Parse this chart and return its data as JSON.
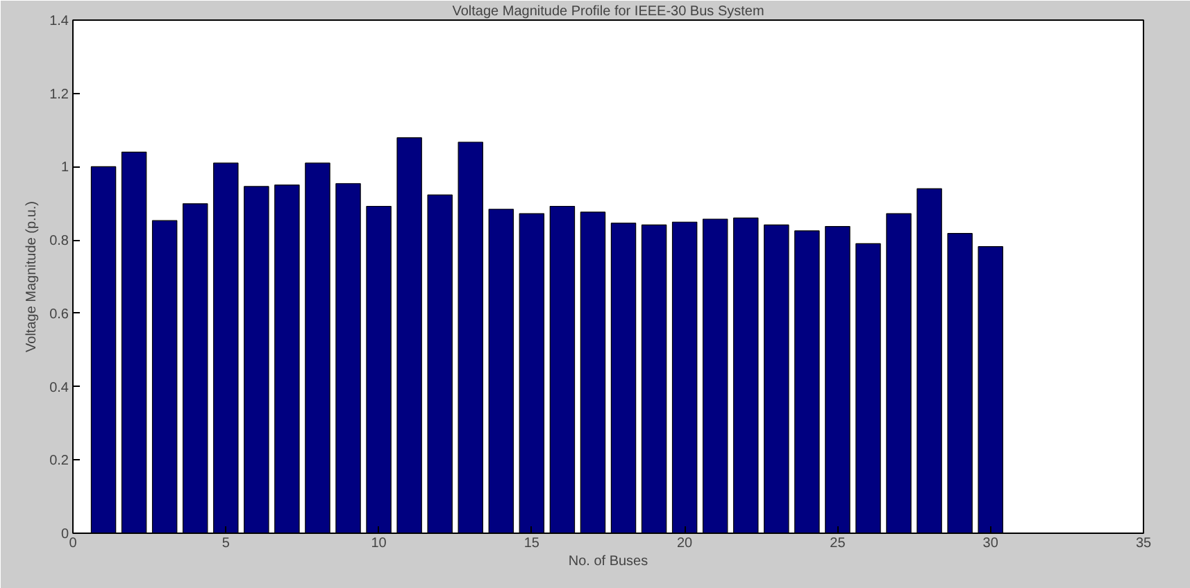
{
  "chart_data": {
    "type": "bar",
    "title": "Voltage Magnitude Profile for IEEE-30 Bus System",
    "xlabel": "No. of Buses",
    "ylabel": "Voltage Magnitude (p.u.)",
    "x": [
      1,
      2,
      3,
      4,
      5,
      6,
      7,
      8,
      9,
      10,
      11,
      12,
      13,
      14,
      15,
      16,
      17,
      18,
      19,
      20,
      21,
      22,
      23,
      24,
      25,
      26,
      27,
      28,
      29,
      30
    ],
    "series": [
      {
        "color": "#000080",
        "values": [
          1.0,
          1.04,
          0.853,
          0.899,
          1.01,
          0.946,
          0.95,
          1.01,
          0.954,
          0.892,
          1.079,
          0.923,
          1.067,
          0.884,
          0.872,
          0.892,
          0.876,
          0.846,
          0.841,
          0.849,
          0.857,
          0.86,
          0.841,
          0.825,
          0.837,
          0.79,
          0.872,
          0.94,
          0.818,
          0.782
        ]
      }
    ],
    "xlim": [
      0,
      35
    ],
    "xticks": [
      0,
      5,
      10,
      15,
      20,
      25,
      30,
      35
    ],
    "ylim": [
      0,
      1.4
    ],
    "yticks": [
      0,
      {
        "value": 0.2,
        "label": "0.2"
      },
      {
        "value": 0.4,
        "label": "0.4"
      },
      {
        "value": 0.6,
        "label": "0.6"
      },
      {
        "value": 0.8,
        "label": "0.8"
      },
      1,
      {
        "value": 1.2,
        "label": "1.2"
      },
      {
        "value": 1.4,
        "label": "1.4"
      }
    ],
    "tick_labels": "xy"
  }
}
